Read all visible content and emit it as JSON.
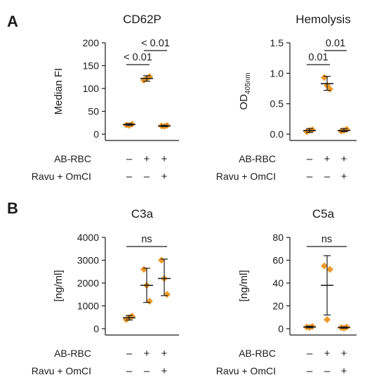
{
  "panel_labels": [
    "A",
    "B"
  ],
  "condition_rows": [
    "AB-RBC",
    "Ravu + OmCI"
  ],
  "conditions": [
    [
      "–",
      "+",
      "+"
    ],
    [
      "–",
      "–",
      "+"
    ]
  ],
  "colors": {
    "marker": "#ee9a2a",
    "axis": "#1a1a1a"
  },
  "chart_data": [
    {
      "type": "scatter",
      "title": "CD62P",
      "ylabel": "Median FI",
      "ylim": [
        0,
        200
      ],
      "yticks": [
        "0",
        "50",
        "100",
        "150",
        "200"
      ],
      "groups": [
        {
          "points": [
            20,
            22,
            19
          ],
          "mean": 21,
          "sd": [
            19,
            23
          ]
        },
        {
          "points": [
            118,
            126,
            122
          ],
          "mean": 122,
          "sd": [
            116,
            128
          ]
        },
        {
          "points": [
            18,
            19,
            17
          ],
          "mean": 18,
          "sd": [
            16.5,
            19.5
          ]
        }
      ],
      "annotations": [
        {
          "text": "< 0.01",
          "from": 0,
          "to": 1
        },
        {
          "text": "< 0.01",
          "from": 1,
          "to": 2
        }
      ]
    },
    {
      "type": "scatter",
      "title": "Hemolysis",
      "ylabel": "OD405nm",
      "ylabel_main": "OD",
      "ylabel_sub": "405nm",
      "ylim": [
        0,
        1.5
      ],
      "yticks": [
        "0.0",
        "0.5",
        "1.0",
        "1.5"
      ],
      "groups": [
        {
          "points": [
            0.04,
            0.07,
            0.06
          ],
          "mean": 0.06,
          "sd": [
            0.03,
            0.09
          ]
        },
        {
          "points": [
            0.93,
            0.74,
            0.8
          ],
          "mean": 0.83,
          "sd": [
            0.72,
            0.95
          ]
        },
        {
          "points": [
            0.05,
            0.08,
            0.06
          ],
          "mean": 0.06,
          "sd": [
            0.04,
            0.09
          ]
        }
      ],
      "annotations": [
        {
          "text": "0.01",
          "from": 0,
          "to": 1
        },
        {
          "text": "0.01",
          "from": 1,
          "to": 2
        }
      ]
    },
    {
      "type": "scatter",
      "title": "C3a",
      "ylabel": "[ng/ml]",
      "ylim": [
        0,
        4000
      ],
      "yticks": [
        "0",
        "1000",
        "2000",
        "3000",
        "4000"
      ],
      "groups": [
        {
          "points": [
            400,
            550,
            480
          ],
          "mean": 480,
          "sd": [
            380,
            580
          ]
        },
        {
          "points": [
            2600,
            1200,
            1900
          ],
          "mean": 1900,
          "sd": [
            1150,
            2650
          ]
        },
        {
          "points": [
            3000,
            1500,
            2200
          ],
          "mean": 2200,
          "sd": [
            1450,
            3050
          ]
        }
      ],
      "annotations": [
        {
          "text": "ns",
          "from": 0,
          "to": 2
        }
      ]
    },
    {
      "type": "scatter",
      "title": "C5a",
      "ylabel": "[ng/ml]",
      "ylim": [
        0,
        80
      ],
      "yticks": [
        "0",
        "20",
        "40",
        "60",
        "80"
      ],
      "groups": [
        {
          "points": [
            1.5,
            2,
            1
          ],
          "mean": 1.5,
          "sd": [
            0.8,
            2.2
          ]
        },
        {
          "points": [
            55,
            52,
            8
          ],
          "mean": 38,
          "sd": [
            12,
            64
          ]
        },
        {
          "points": [
            1,
            1.5,
            0.5
          ],
          "mean": 1,
          "sd": [
            0.4,
            1.6
          ]
        }
      ],
      "annotations": [
        {
          "text": "ns",
          "from": 0,
          "to": 2
        }
      ]
    }
  ]
}
